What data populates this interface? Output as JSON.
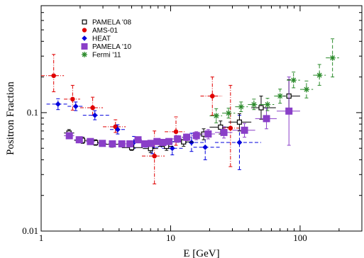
{
  "chart_data": {
    "type": "scatter",
    "title": "",
    "xlabel": "E [GeV]",
    "ylabel": "Positron Fraction",
    "xscale": "log",
    "yscale": "log",
    "xlim": [
      1,
      300
    ],
    "ylim": [
      0.01,
      0.8
    ],
    "x_ticks": [
      {
        "value": 1,
        "label": "1"
      },
      {
        "value": 10,
        "label": "10"
      },
      {
        "value": 100,
        "label": "100"
      }
    ],
    "y_ticks": [
      {
        "value": 0.01,
        "label": "0.01"
      },
      {
        "value": 0.1,
        "label": "0.1"
      }
    ],
    "grid": false,
    "legend_position": "top-left",
    "series": [
      {
        "name": "PAMELA '08",
        "marker": "open-square",
        "color": "#000000",
        "error_style": "solid",
        "points": [
          {
            "x": 1.64,
            "y": 0.0673,
            "xerr": [
              1.5,
              1.8
            ],
            "yerr": [
              0.062,
              0.072
            ]
          },
          {
            "x": 2.09,
            "y": 0.0583,
            "xerr": [
              1.8,
              2.4
            ],
            "yerr": [
              0.055,
              0.062
            ]
          },
          {
            "x": 2.63,
            "y": 0.0558,
            "xerr": [
              2.4,
              2.9
            ],
            "yerr": [
              0.053,
              0.059
            ]
          },
          {
            "x": 3.52,
            "y": 0.0541,
            "xerr": [
              2.9,
              4.2
            ],
            "yerr": [
              0.051,
              0.057
            ]
          },
          {
            "x": 5.0,
            "y": 0.0507,
            "xerr": [
              4.2,
              6.1
            ],
            "yerr": [
              0.048,
              0.054
            ]
          },
          {
            "x": 7.0,
            "y": 0.0497,
            "xerr": [
              6.1,
              8.0
            ],
            "yerr": [
              0.046,
              0.053
            ]
          },
          {
            "x": 9.3,
            "y": 0.0519,
            "xerr": [
              8.0,
              10.5
            ],
            "yerr": [
              0.048,
              0.056
            ]
          },
          {
            "x": 12.6,
            "y": 0.0566,
            "xerr": [
              10.5,
              15.0
            ],
            "yerr": [
              0.052,
              0.062
            ]
          },
          {
            "x": 18.0,
            "y": 0.0659,
            "xerr": [
              15.0,
              20.0
            ],
            "yerr": [
              0.059,
              0.073
            ]
          },
          {
            "x": 24.3,
            "y": 0.0754,
            "xerr": [
              20.0,
              28.0
            ],
            "yerr": [
              0.066,
              0.085
            ]
          },
          {
            "x": 34.0,
            "y": 0.0832,
            "xerr": [
              28.0,
              42.0
            ],
            "yerr": [
              0.07,
              0.098
            ]
          },
          {
            "x": 50.0,
            "y": 0.11,
            "xerr": [
              42.0,
              65.0
            ],
            "yerr": [
              0.088,
              0.138
            ]
          },
          {
            "x": 82.0,
            "y": 0.138,
            "xerr": [
              65.0,
              100.0
            ],
            "yerr": [
              0.1,
              0.19
            ]
          }
        ]
      },
      {
        "name": "AMS-01",
        "marker": "circle",
        "color": "#e00000",
        "error_style": "dash-dot",
        "points": [
          {
            "x": 1.25,
            "y": 0.205,
            "xerr": [
              1.0,
              1.5
            ],
            "yerr": [
              0.15,
              0.31
            ]
          },
          {
            "x": 1.75,
            "y": 0.13,
            "xerr": [
              1.5,
              2.0
            ],
            "yerr": [
              0.105,
              0.17
            ]
          },
          {
            "x": 2.5,
            "y": 0.11,
            "xerr": [
              2.0,
              3.0
            ],
            "yerr": [
              0.095,
              0.135
            ]
          },
          {
            "x": 3.75,
            "y": 0.076,
            "xerr": [
              3.0,
              4.5
            ],
            "yerr": [
              0.068,
              0.087
            ]
          },
          {
            "x": 7.5,
            "y": 0.043,
            "xerr": [
              6.0,
              9.0
            ],
            "yerr": [
              0.025,
              0.07
            ]
          },
          {
            "x": 11.0,
            "y": 0.069,
            "xerr": [
              9.0,
              13.0
            ],
            "yerr": [
              0.053,
              0.092
            ]
          },
          {
            "x": 21.0,
            "y": 0.138,
            "xerr": [
              17.0,
              25.0
            ],
            "yerr": [
              0.095,
              0.2
            ]
          },
          {
            "x": 29.0,
            "y": 0.074,
            "xerr": [
              25.0,
              34.0
            ],
            "yerr": [
              0.035,
              0.17
            ]
          }
        ]
      },
      {
        "name": "HEAT",
        "marker": "diamond",
        "color": "#0000dd",
        "error_style": "dashed",
        "points": [
          {
            "x": 1.35,
            "y": 0.118,
            "xerr": [
              1.1,
              1.6
            ],
            "yerr": [
              0.106,
              0.131
            ]
          },
          {
            "x": 1.85,
            "y": 0.113,
            "xerr": [
              1.6,
              2.1
            ],
            "yerr": [
              0.104,
              0.123
            ]
          },
          {
            "x": 2.6,
            "y": 0.095,
            "xerr": [
              2.1,
              3.4
            ],
            "yerr": [
              0.087,
              0.104
            ]
          },
          {
            "x": 3.9,
            "y": 0.072,
            "xerr": [
              3.4,
              4.6
            ],
            "yerr": [
              0.066,
              0.079
            ]
          },
          {
            "x": 5.2,
            "y": 0.056,
            "xerr": [
              4.6,
              6.2
            ],
            "yerr": [
              0.05,
              0.063
            ]
          },
          {
            "x": 7.2,
            "y": 0.051,
            "xerr": [
              6.2,
              8.6
            ],
            "yerr": [
              0.045,
              0.058
            ]
          },
          {
            "x": 10.3,
            "y": 0.05,
            "xerr": [
              8.6,
              12.5
            ],
            "yerr": [
              0.044,
              0.057
            ]
          },
          {
            "x": 14.5,
            "y": 0.056,
            "xerr": [
              12.5,
              18.0
            ],
            "yerr": [
              0.047,
              0.067
            ]
          },
          {
            "x": 18.5,
            "y": 0.051,
            "xerr": [
              15.0,
              24.0
            ],
            "yerr": [
              0.04,
              0.066
            ]
          },
          {
            "x": 34.0,
            "y": 0.056,
            "xerr": [
              22.0,
              50.0
            ],
            "yerr": [
              0.033,
              0.095
            ]
          }
        ]
      },
      {
        "name": "PAMELA '10",
        "marker": "filled-square",
        "color": "#8a3fc8",
        "error_style": "solid",
        "points": [
          {
            "x": 1.65,
            "y": 0.0638,
            "xerr": [
              1.5,
              1.8
            ],
            "yerr": [
              0.061,
              0.067
            ]
          },
          {
            "x": 1.97,
            "y": 0.059,
            "xerr": [
              1.8,
              2.1
            ],
            "yerr": [
              0.057,
              0.061
            ]
          },
          {
            "x": 2.4,
            "y": 0.057,
            "xerr": [
              2.2,
              2.6
            ],
            "yerr": [
              0.055,
              0.059
            ]
          },
          {
            "x": 2.97,
            "y": 0.055,
            "xerr": [
              2.7,
              3.2
            ],
            "yerr": [
              0.053,
              0.057
            ]
          },
          {
            "x": 3.55,
            "y": 0.0545,
            "xerr": [
              3.3,
              3.8
            ],
            "yerr": [
              0.052,
              0.057
            ]
          },
          {
            "x": 4.2,
            "y": 0.0545,
            "xerr": [
              3.9,
              4.5
            ],
            "yerr": [
              0.052,
              0.057
            ]
          },
          {
            "x": 4.85,
            "y": 0.0545,
            "xerr": [
              4.5,
              5.2
            ],
            "yerr": [
              0.052,
              0.057
            ]
          },
          {
            "x": 5.6,
            "y": 0.059,
            "xerr": [
              5.2,
              6.0
            ],
            "yerr": [
              0.056,
              0.062
            ]
          },
          {
            "x": 6.3,
            "y": 0.0545,
            "xerr": [
              6.0,
              6.6
            ],
            "yerr": [
              0.052,
              0.057
            ]
          },
          {
            "x": 7.05,
            "y": 0.055,
            "xerr": [
              6.7,
              7.4
            ],
            "yerr": [
              0.052,
              0.058
            ]
          },
          {
            "x": 7.85,
            "y": 0.057,
            "xerr": [
              7.4,
              8.3
            ],
            "yerr": [
              0.054,
              0.06
            ]
          },
          {
            "x": 8.7,
            "y": 0.056,
            "xerr": [
              8.3,
              9.1
            ],
            "yerr": [
              0.053,
              0.059
            ]
          },
          {
            "x": 9.7,
            "y": 0.057,
            "xerr": [
              9.1,
              10.3
            ],
            "yerr": [
              0.054,
              0.06
            ]
          },
          {
            "x": 11.3,
            "y": 0.06,
            "xerr": [
              10.3,
              12.3
            ],
            "yerr": [
              0.056,
              0.064
            ]
          },
          {
            "x": 13.3,
            "y": 0.062,
            "xerr": [
              12.3,
              14.4
            ],
            "yerr": [
              0.058,
              0.066
            ]
          },
          {
            "x": 15.8,
            "y": 0.064,
            "xerr": [
              14.4,
              17.3
            ],
            "yerr": [
              0.059,
              0.069
            ]
          },
          {
            "x": 19.5,
            "y": 0.066,
            "xerr": [
              17.3,
              22.0
            ],
            "yerr": [
              0.06,
              0.072
            ]
          },
          {
            "x": 25.8,
            "y": 0.068,
            "xerr": [
              22.0,
              30.0
            ],
            "yerr": [
              0.061,
              0.076
            ]
          },
          {
            "x": 37.2,
            "y": 0.071,
            "xerr": [
              30.0,
              45.0
            ],
            "yerr": [
              0.062,
              0.081
            ]
          },
          {
            "x": 55.0,
            "y": 0.089,
            "xerr": [
              45.0,
              66.0
            ],
            "yerr": [
              0.073,
              0.109
            ]
          },
          {
            "x": 82.0,
            "y": 0.103,
            "xerr": [
              66.0,
              100.0
            ],
            "yerr": [
              0.053,
              0.2
            ]
          }
        ]
      },
      {
        "name": "Fermi '11",
        "marker": "asterisk",
        "color": "#2a8a2a",
        "error_style": "dashed",
        "points": [
          {
            "x": 22.5,
            "y": 0.094,
            "xerr": [
              20.0,
              25.0
            ],
            "yerr": [
              0.082,
              0.108
            ]
          },
          {
            "x": 28.0,
            "y": 0.099,
            "xerr": [
              25.0,
              31.5
            ],
            "yerr": [
              0.09,
              0.109
            ]
          },
          {
            "x": 35.0,
            "y": 0.112,
            "xerr": [
              31.5,
              39.5
            ],
            "yerr": [
              0.102,
              0.123
            ]
          },
          {
            "x": 44.0,
            "y": 0.117,
            "xerr": [
              39.5,
              50.0
            ],
            "yerr": [
              0.106,
              0.13
            ]
          },
          {
            "x": 56.0,
            "y": 0.117,
            "xerr": [
              50.0,
              63.0
            ],
            "yerr": [
              0.104,
              0.132
            ]
          },
          {
            "x": 70.0,
            "y": 0.138,
            "xerr": [
              63.0,
              79.0
            ],
            "yerr": [
              0.12,
              0.158
            ]
          },
          {
            "x": 89.0,
            "y": 0.188,
            "xerr": [
              79.0,
              100.0
            ],
            "yerr": [
              0.162,
              0.22
            ]
          },
          {
            "x": 112.0,
            "y": 0.157,
            "xerr": [
              100.0,
              126.0
            ],
            "yerr": [
              0.133,
              0.185
            ]
          },
          {
            "x": 141.0,
            "y": 0.207,
            "xerr": [
              126.0,
              158.0
            ],
            "yerr": [
              0.17,
              0.255
            ]
          },
          {
            "x": 178.0,
            "y": 0.29,
            "xerr": [
              158.0,
              200.0
            ],
            "yerr": [
              0.2,
              0.42
            ]
          }
        ]
      }
    ]
  }
}
